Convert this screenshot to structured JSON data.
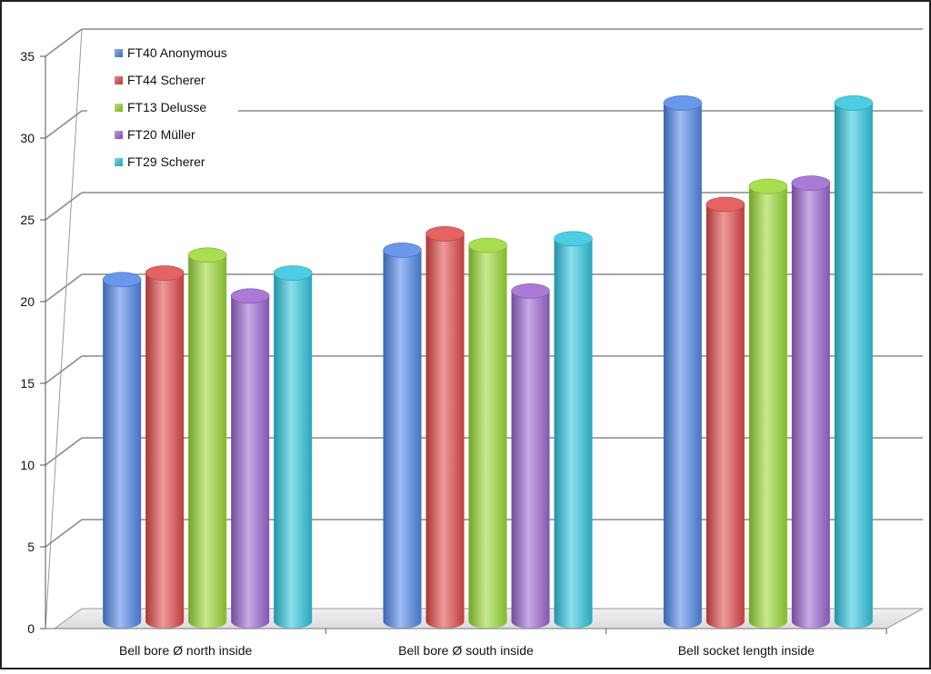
{
  "chart_data": {
    "type": "bar",
    "categories": [
      "Bell bore Ø north inside",
      "Bell bore Ø south inside",
      "Bell socket length inside"
    ],
    "series": [
      {
        "name": "FT40 Anonymous",
        "color": "#4f86e8",
        "values": [
          20.9,
          22.7,
          31.7
        ]
      },
      {
        "name": "FT44 Scherer",
        "color": "#e04848",
        "values": [
          21.3,
          23.7,
          25.5
        ]
      },
      {
        "name": "FT13 Delusse",
        "color": "#9ad832",
        "values": [
          22.4,
          23.0,
          26.6
        ]
      },
      {
        "name": "FT20 Müller",
        "color": "#9a64cf",
        "values": [
          19.9,
          20.2,
          26.8
        ]
      },
      {
        "name": "FT29 Scherer",
        "color": "#2ec4de",
        "values": [
          21.3,
          23.4,
          31.7
        ]
      }
    ],
    "y_ticks": [
      "0",
      "5",
      "10",
      "15",
      "20",
      "25",
      "30",
      "35"
    ],
    "ylim": [
      0,
      35
    ],
    "grid": true,
    "legend_position": "top-left"
  }
}
